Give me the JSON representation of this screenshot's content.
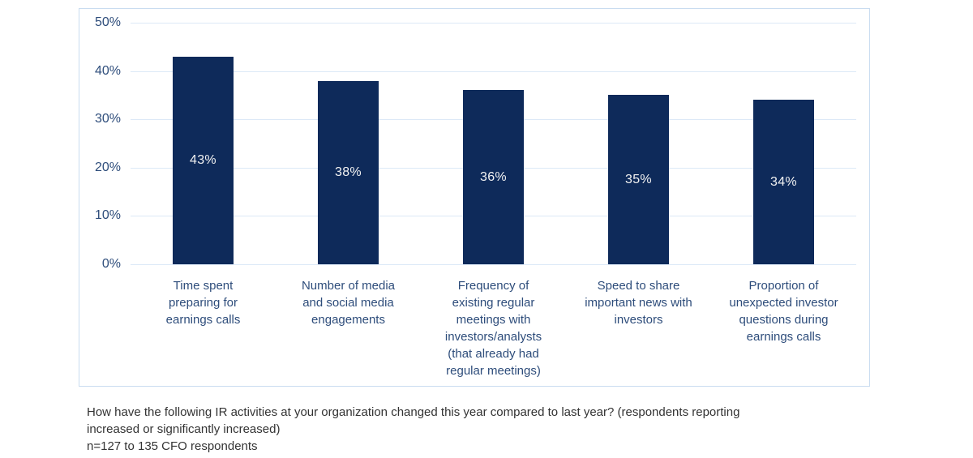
{
  "chart_data": {
    "type": "bar",
    "categories": [
      "Time spent\npreparing for\nearnings calls",
      "Number of media\nand social media\nengagements",
      "Frequency of\nexisting regular\nmeetings with\ninvestors/analysts\n(that already had\nregular meetings)",
      "Speed to share\nimportant news with\ninvestors",
      "Proportion of\nunexpected investor\nquestions during\nearnings calls"
    ],
    "values": [
      43,
      38,
      36,
      35,
      34
    ],
    "value_labels": [
      "43%",
      "38%",
      "36%",
      "35%",
      "34%"
    ],
    "title": "",
    "xlabel": "",
    "ylabel": "",
    "ylim": [
      0,
      50
    ],
    "ytick_values": [
      0,
      10,
      20,
      30,
      40,
      50
    ],
    "ytick_labels": [
      "0%",
      "10%",
      "20%",
      "30%",
      "40%",
      "50%"
    ],
    "grid": true,
    "legend": "none",
    "colors": {
      "bar_fill": "#0e2a5a",
      "bar_value_text": "#f2f2f2",
      "axis_text": "#2e4d7b",
      "gridline": "#dce9f7",
      "panel_border": "#c9dcf0",
      "footer_text": "#333333"
    }
  },
  "footer": {
    "lines": [
      "How have the following IR activities at your organization changed this year compared to last year? (respondents reporting",
      "increased or significantly increased)",
      "n=127 to 135 CFO respondents"
    ]
  }
}
